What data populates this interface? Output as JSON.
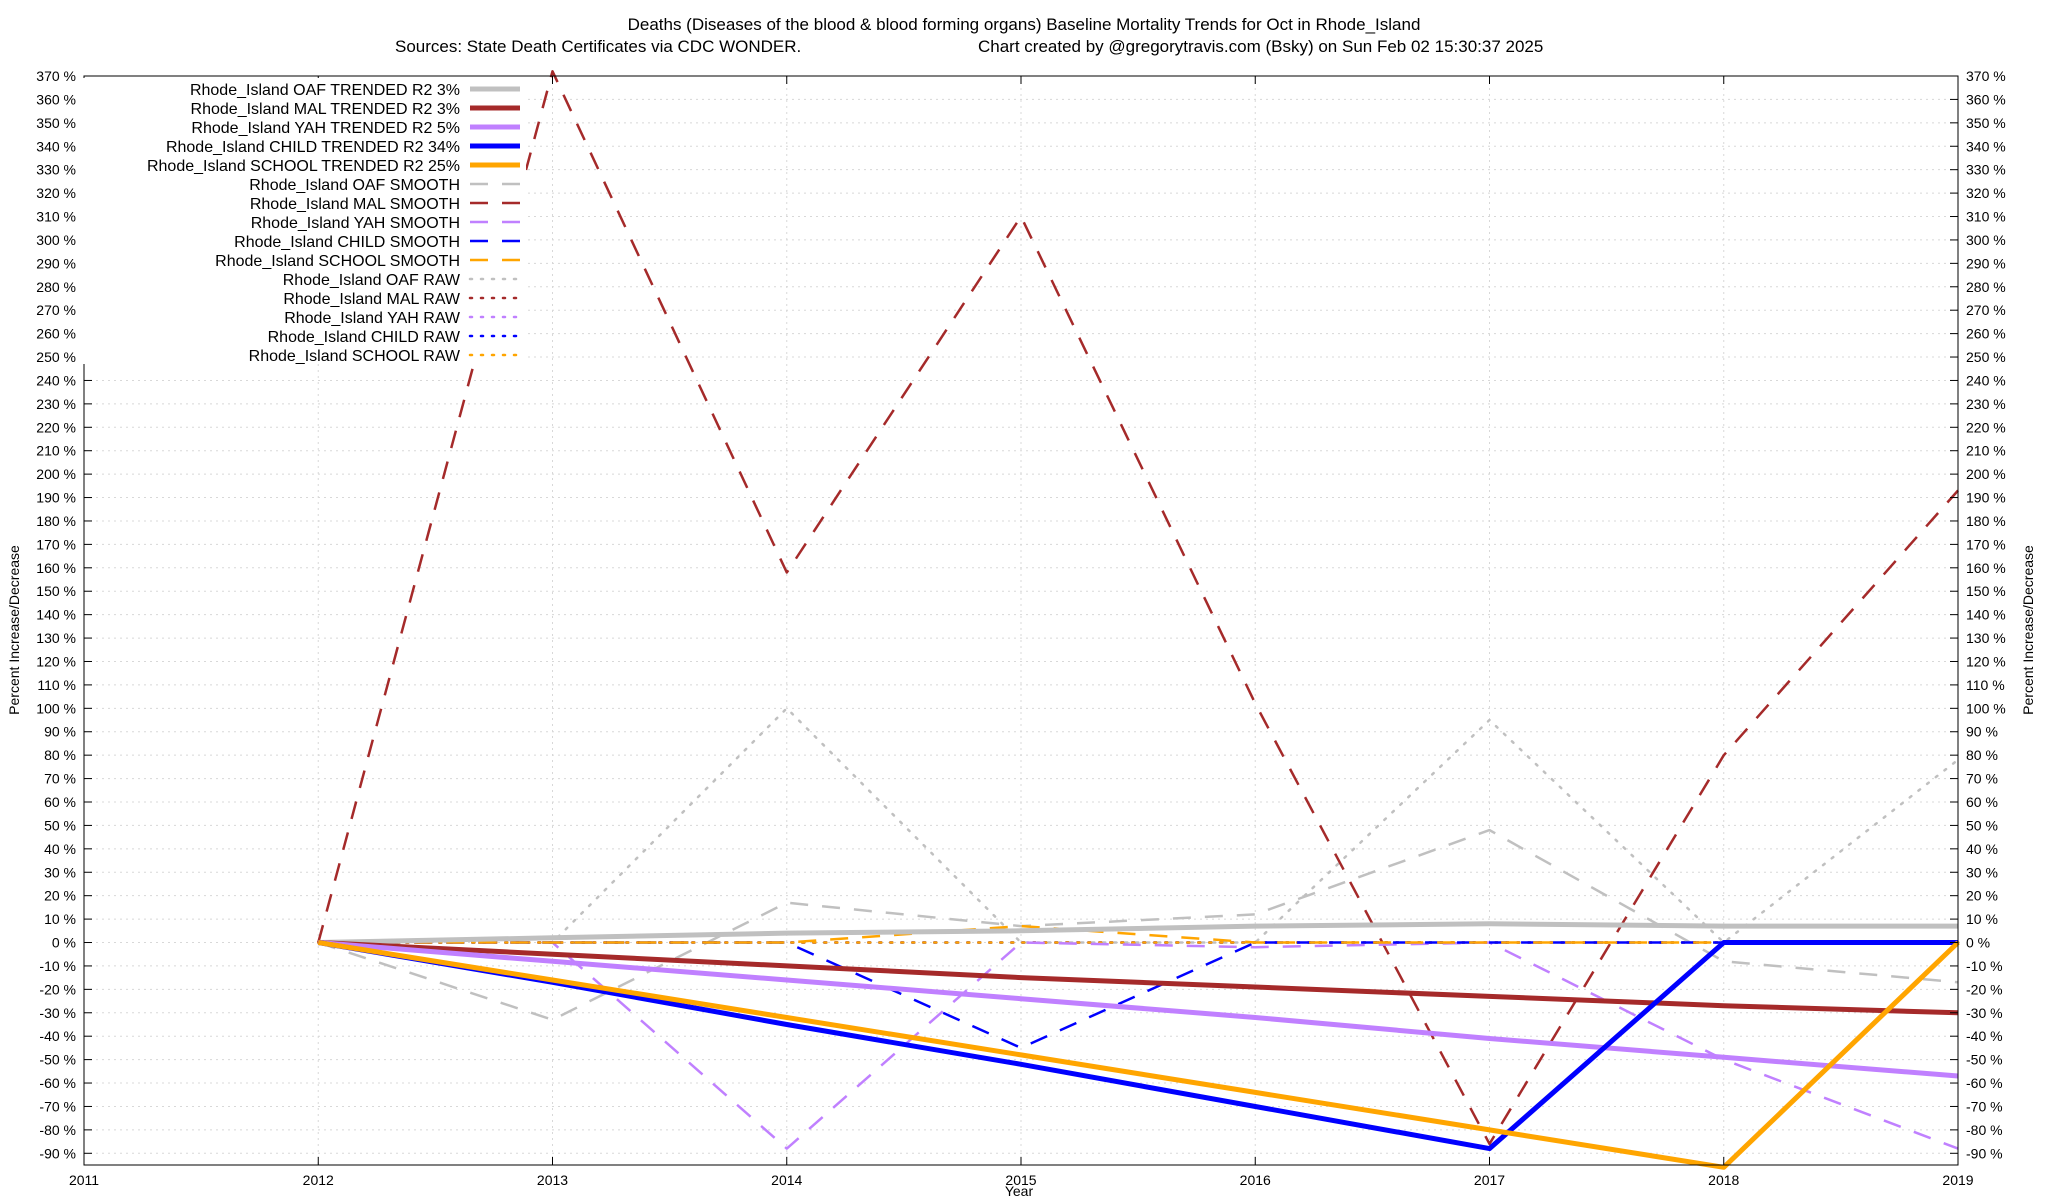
{
  "chart_data": {
    "type": "line",
    "title": "Deaths (Diseases of the blood & blood forming organs)  Baseline Mortality Trends for Oct in Rhode_Island",
    "subtitle_left": "Sources: State Death Certificates via CDC WONDER.",
    "subtitle_right": "Chart created by @gregorytravis.com (Bsky) on Sun Feb 02 15:30:37 2025",
    "xlabel": "Year",
    "ylabel": "Percent Increase/Decrease",
    "ylabel_right": "Percent Increase/Decrease",
    "xlim": [
      2011,
      2019
    ],
    "ylim": [
      -95,
      370
    ],
    "x_ticks": [
      "2011",
      "2012",
      "2013",
      "2014",
      "2015",
      "2016",
      "2017",
      "2018",
      "2019"
    ],
    "y_ticks": [
      "370 %",
      "360 %",
      "350 %",
      "340 %",
      "330 %",
      "320 %",
      "310 %",
      "300 %",
      "290 %",
      "280 %",
      "270 %",
      "260 %",
      "250 %",
      "240 %",
      "230 %",
      "220 %",
      "210 %",
      "200 %",
      "190 %",
      "180 %",
      "170 %",
      "160 %",
      "150 %",
      "140 %",
      "130 %",
      "120 %",
      "110 %",
      "100 %",
      "90 %",
      "80 %",
      "70 %",
      "60 %",
      "50 %",
      "40 %",
      "30 %",
      "20 %",
      "10 %",
      "0 %",
      "-10 %",
      "-20 %",
      "-30 %",
      "-40 %",
      "-50 %",
      "-60 %",
      "-70 %",
      "-80 %",
      "-90 %"
    ],
    "grid": true,
    "legend_position": "top-left",
    "series": [
      {
        "name": "Rhode_Island OAF TRENDED R2   3%",
        "color": "#c0c0c0",
        "style": "solid",
        "width": 5,
        "x": [
          2012,
          2013,
          2014,
          2015,
          2016,
          2017,
          2018,
          2019
        ],
        "y": [
          0,
          2,
          4,
          5,
          7,
          8,
          7,
          7
        ]
      },
      {
        "name": "Rhode_Island MAL TRENDED R2   3%",
        "color": "#a52a2a",
        "style": "solid",
        "width": 5,
        "x": [
          2012,
          2013,
          2014,
          2015,
          2016,
          2017,
          2018,
          2019
        ],
        "y": [
          0,
          -5,
          -10,
          -15,
          -19,
          -23,
          -27,
          -30
        ]
      },
      {
        "name": "Rhode_Island YAH TRENDED R2   5%",
        "color": "#c080ff",
        "style": "solid",
        "width": 5,
        "x": [
          2012,
          2013,
          2014,
          2015,
          2016,
          2017,
          2018,
          2019
        ],
        "y": [
          0,
          -8,
          -16,
          -24,
          -32,
          -41,
          -49,
          -57
        ]
      },
      {
        "name": "Rhode_Island CHILD TRENDED R2  34%",
        "color": "#0000ff",
        "style": "solid",
        "width": 5,
        "x": [
          2012,
          2013,
          2014,
          2015,
          2016,
          2017,
          2018,
          2019
        ],
        "y": [
          0,
          -17,
          -35,
          -52,
          -70,
          -88,
          0,
          0
        ]
      },
      {
        "name": "Rhode_Island SCHOOL TRENDED R2  25%",
        "color": "#ffa500",
        "style": "solid",
        "width": 5,
        "x": [
          2012,
          2013,
          2014,
          2015,
          2016,
          2017,
          2018,
          2019
        ],
        "y": [
          0,
          -16,
          -32,
          -48,
          -64,
          -80,
          -96,
          0
        ]
      },
      {
        "name": "Rhode_Island OAF SMOOTH",
        "color": "#c0c0c0",
        "style": "dashed",
        "width": 2.5,
        "x": [
          2012,
          2013,
          2014,
          2015,
          2016,
          2017,
          2018,
          2019
        ],
        "y": [
          0,
          -33,
          17,
          7,
          12,
          48,
          -8,
          -17
        ]
      },
      {
        "name": "Rhode_Island MAL SMOOTH",
        "color": "#a52a2a",
        "style": "dashed",
        "width": 2.5,
        "x": [
          2012,
          2013,
          2014,
          2015,
          2016,
          2017,
          2018,
          2019
        ],
        "y": [
          0,
          372,
          158,
          310,
          102,
          -86,
          80,
          193
        ]
      },
      {
        "name": "Rhode_Island YAH SMOOTH",
        "color": "#c080ff",
        "style": "dashed",
        "width": 2.5,
        "x": [
          2012,
          2013,
          2014,
          2015,
          2016,
          2017,
          2018,
          2019
        ],
        "y": [
          0,
          0,
          -88,
          0,
          -2,
          0,
          -50,
          -88
        ]
      },
      {
        "name": "Rhode_Island CHILD SMOOTH",
        "color": "#0000ff",
        "style": "dashed",
        "width": 2.5,
        "x": [
          2012,
          2013,
          2014,
          2015,
          2016,
          2017,
          2018,
          2019
        ],
        "y": [
          0,
          0,
          0,
          -45,
          0,
          0,
          0,
          0
        ]
      },
      {
        "name": "Rhode_Island SCHOOL SMOOTH",
        "color": "#ffa500",
        "style": "dashed",
        "width": 2.5,
        "x": [
          2012,
          2013,
          2014,
          2015,
          2016,
          2017,
          2018,
          2019
        ],
        "y": [
          0,
          0,
          0,
          7,
          0,
          0,
          0,
          0
        ]
      },
      {
        "name": "Rhode_Island OAF RAW",
        "color": "#c0c0c0",
        "style": "dotted",
        "width": 2.5,
        "x": [
          2012,
          2013,
          2014,
          2015,
          2016,
          2017,
          2018,
          2019
        ],
        "y": [
          0,
          0,
          100,
          0,
          0,
          95,
          0,
          78
        ]
      },
      {
        "name": "Rhode_Island MAL RAW",
        "color": "#a52a2a",
        "style": "dotted",
        "width": 2.5,
        "x": [
          2012,
          2013,
          2014,
          2015,
          2016,
          2017,
          2018,
          2019
        ],
        "y": [
          0,
          0,
          0,
          0,
          0,
          0,
          0,
          0
        ]
      },
      {
        "name": "Rhode_Island YAH RAW",
        "color": "#c080ff",
        "style": "dotted",
        "width": 2.5,
        "x": [
          2012,
          2013,
          2014,
          2015,
          2016,
          2017,
          2018,
          2019
        ],
        "y": [
          0,
          0,
          0,
          0,
          0,
          0,
          0,
          0
        ]
      },
      {
        "name": "Rhode_Island CHILD RAW",
        "color": "#0000ff",
        "style": "dotted",
        "width": 2.5,
        "x": [
          2012,
          2013,
          2014,
          2015,
          2016,
          2017,
          2018,
          2019
        ],
        "y": [
          0,
          0,
          0,
          0,
          0,
          0,
          0,
          0
        ]
      },
      {
        "name": "Rhode_Island SCHOOL RAW",
        "color": "#ffa500",
        "style": "dotted",
        "width": 2.5,
        "x": [
          2012,
          2013,
          2014,
          2015,
          2016,
          2017,
          2018,
          2019
        ],
        "y": [
          0,
          0,
          0,
          0,
          0,
          0,
          0,
          0
        ]
      }
    ]
  }
}
